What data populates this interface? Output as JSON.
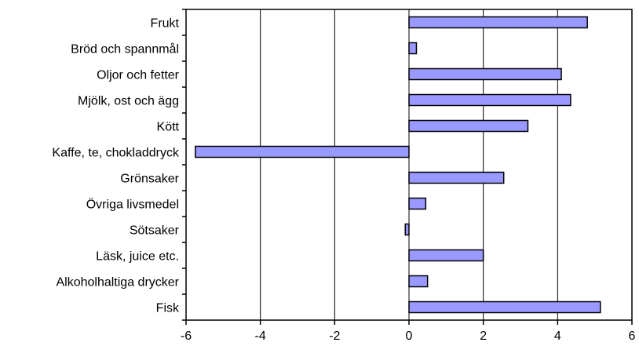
{
  "chart_data": {
    "type": "bar",
    "orientation": "horizontal",
    "title": "",
    "xlabel": "",
    "ylabel": "",
    "categories": [
      "Frukt",
      "Bröd och spannmål",
      "Oljor och fetter",
      "Mjölk, ost och ägg",
      "Kött",
      "Kaffe, te, chokladdryck",
      "Grönsaker",
      "Övriga livsmedel",
      "Sötsaker",
      "Läsk, juice etc.",
      "Alkoholhaltiga drycker",
      "Fisk"
    ],
    "values": [
      4.8,
      0.2,
      4.1,
      4.35,
      3.2,
      -5.75,
      2.55,
      0.45,
      -0.1,
      2.0,
      0.5,
      5.15
    ],
    "xlim": [
      -6,
      6
    ],
    "xticks": [
      -6,
      -4,
      -2,
      0,
      2,
      4,
      6
    ],
    "xtick_labels": [
      "-6",
      "-4",
      "-2",
      "0",
      "2",
      "4",
      "6"
    ],
    "grid": "vertical major lines",
    "legend": "none",
    "bar_color": "#9999ff",
    "bar_edge_color": "#000000"
  }
}
